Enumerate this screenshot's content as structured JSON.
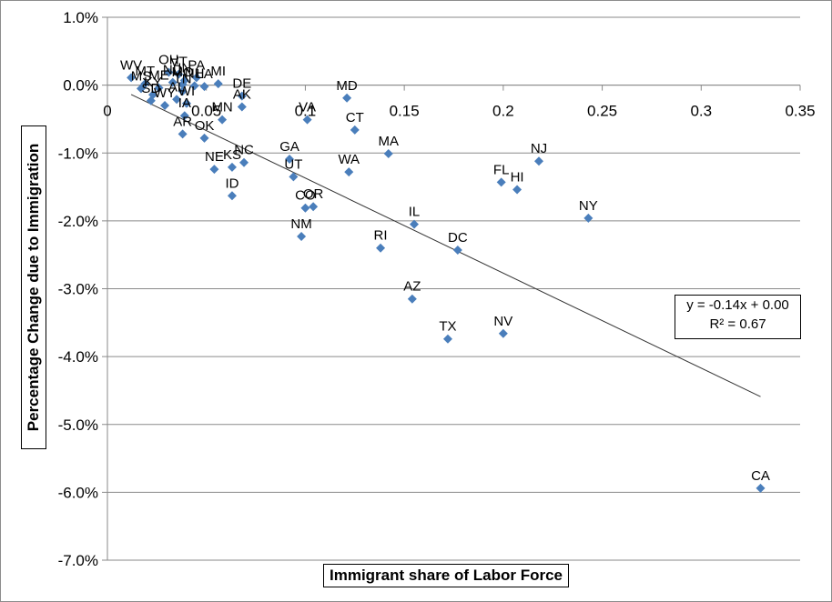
{
  "chart_data": {
    "type": "scatter",
    "title": "",
    "xlabel": "Immigrant share of Labor Force",
    "ylabel": "Percentage Change due to Immigration",
    "xlim": [
      0,
      0.35
    ],
    "ylim": [
      -0.07,
      0.01
    ],
    "x_ticks": [
      "0",
      "0.05",
      "0.1",
      "0.15",
      "0.2",
      "0.25",
      "0.3",
      "0.35"
    ],
    "y_ticks": [
      "1.0%",
      "0.0%",
      "-1.0%",
      "-2.0%",
      "-3.0%",
      "-4.0%",
      "-5.0%",
      "-6.0%",
      "-7.0%"
    ],
    "grid": "horizontal",
    "marker_color": "#4a7ebb",
    "trendline": {
      "equation": "y = -0.14x + 0.00",
      "r_squared": "R² = 0.67",
      "slope": -0.14,
      "intercept": 0.0003,
      "x_range": [
        0.012,
        0.33
      ]
    },
    "points": [
      {
        "label": "WV",
        "x": 0.012,
        "y": 0.0011
      },
      {
        "label": "MS",
        "x": 0.017,
        "y": -0.0005
      },
      {
        "label": "SD",
        "x": 0.022,
        "y": -0.0023
      },
      {
        "label": "MT",
        "x": 0.019,
        "y": 0.0002
      },
      {
        "label": "KY",
        "x": 0.023,
        "y": -0.0014
      },
      {
        "label": "ME",
        "x": 0.026,
        "y": -0.0004
      },
      {
        "label": "WY",
        "x": 0.029,
        "y": -0.003
      },
      {
        "label": "OH",
        "x": 0.031,
        "y": 0.0019
      },
      {
        "label": "ND",
        "x": 0.033,
        "y": 0.0004
      },
      {
        "label": "VT",
        "x": 0.036,
        "y": 0.0016
      },
      {
        "label": "AL",
        "x": 0.035,
        "y": -0.0021
      },
      {
        "label": "TN",
        "x": 0.038,
        "y": -0.0009
      },
      {
        "label": "MO",
        "x": 0.038,
        "y": 0.0001
      },
      {
        "label": "IN",
        "x": 0.039,
        "y": 0.0007
      },
      {
        "label": "WI",
        "x": 0.04,
        "y": -0.0027
      },
      {
        "label": "IA",
        "x": 0.039,
        "y": -0.0045
      },
      {
        "label": "AR",
        "x": 0.038,
        "y": -0.0072
      },
      {
        "label": "PA",
        "x": 0.045,
        "y": 0.0011
      },
      {
        "label": "NH",
        "x": 0.044,
        "y": -0.0001
      },
      {
        "label": "OK",
        "x": 0.049,
        "y": -0.0078
      },
      {
        "label": "LA",
        "x": 0.049,
        "y": -0.0002
      },
      {
        "label": "MI",
        "x": 0.056,
        "y": 0.0002
      },
      {
        "label": "NE",
        "x": 0.054,
        "y": -0.0124
      },
      {
        "label": "MN",
        "x": 0.058,
        "y": -0.0051
      },
      {
        "label": "KS",
        "x": 0.063,
        "y": -0.0121
      },
      {
        "label": "ID",
        "x": 0.063,
        "y": -0.0163
      },
      {
        "label": "DE",
        "x": 0.068,
        "y": -0.0016
      },
      {
        "label": "AK",
        "x": 0.068,
        "y": -0.0032
      },
      {
        "label": "NC",
        "x": 0.069,
        "y": -0.0114
      },
      {
        "label": "GA",
        "x": 0.092,
        "y": -0.0109
      },
      {
        "label": "UT",
        "x": 0.094,
        "y": -0.0135
      },
      {
        "label": "VA",
        "x": 0.101,
        "y": -0.0051
      },
      {
        "label": "NM",
        "x": 0.098,
        "y": -0.0223
      },
      {
        "label": "CO",
        "x": 0.1,
        "y": -0.0181
      },
      {
        "label": "OR",
        "x": 0.104,
        "y": -0.0179
      },
      {
        "label": "MD",
        "x": 0.121,
        "y": -0.0019
      },
      {
        "label": "CT",
        "x": 0.125,
        "y": -0.0066
      },
      {
        "label": "WA",
        "x": 0.122,
        "y": -0.0128
      },
      {
        "label": "RI",
        "x": 0.138,
        "y": -0.024
      },
      {
        "label": "MA",
        "x": 0.142,
        "y": -0.0101
      },
      {
        "label": "IL",
        "x": 0.155,
        "y": -0.0205
      },
      {
        "label": "AZ",
        "x": 0.154,
        "y": -0.0315
      },
      {
        "label": "TX",
        "x": 0.172,
        "y": -0.0374
      },
      {
        "label": "DC",
        "x": 0.177,
        "y": -0.0243
      },
      {
        "label": "FL",
        "x": 0.199,
        "y": -0.0143
      },
      {
        "label": "NV",
        "x": 0.2,
        "y": -0.0366
      },
      {
        "label": "HI",
        "x": 0.207,
        "y": -0.0154
      },
      {
        "label": "NJ",
        "x": 0.218,
        "y": -0.0112
      },
      {
        "label": "NY",
        "x": 0.243,
        "y": -0.0196
      },
      {
        "label": "CA",
        "x": 0.33,
        "y": -0.0594
      }
    ]
  }
}
